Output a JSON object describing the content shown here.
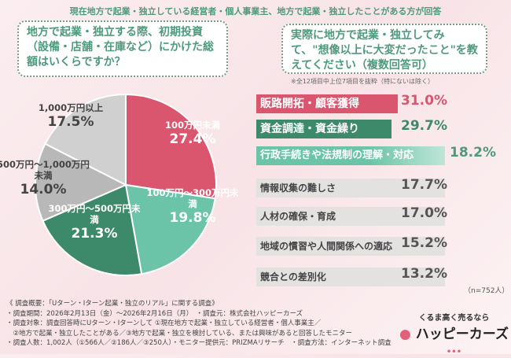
{
  "header": "現在地方で起業・独立している経営者・個人事業主、地方で起業・独立したことがある方が回答",
  "q1": "地方で起業・独立する際、初期投資（設備・店舗・在庫など）にかけた総額はいくらですか？",
  "q2": "実際に地方で起業・独立してみて、\"想像以上に大変だったこと\"を教えてください（複数回答可）",
  "note": "※全12項目中上位7項目を抜粋（特にないは除く）",
  "sample": "（n=752人）",
  "colors": {
    "pink": "#d9566e",
    "teal": "#6cc4a8",
    "green": "#3d8a6a",
    "gray1": "#c9c9c9",
    "gray2": "#b3b3b3"
  },
  "chart_data": [
    {
      "type": "pie",
      "slices": [
        {
          "label": "100万円未満",
          "value": 27.4,
          "display": "27.4%",
          "color": "#d9566e"
        },
        {
          "label": "100万円～300万円未満",
          "value": 19.8,
          "display": "19.8%",
          "color": "#6cc4a8"
        },
        {
          "label": "300万円～500万円未満",
          "value": 21.3,
          "display": "21.3%",
          "color": "#3d8a6a"
        },
        {
          "label": "500万円～1,000万円未満",
          "value": 14.0,
          "display": "14.0%",
          "color": "#b8b8b8"
        },
        {
          "label": "1,000万円以上",
          "value": 17.5,
          "display": "17.5%",
          "color": "#d0d0d0"
        }
      ]
    },
    {
      "type": "bar",
      "orientation": "horizontal",
      "categories": [
        "販路開拓・顧客獲得",
        "資金調達・資金繰り",
        "行政手続きや法規制の理解・対応",
        "情報収集の難しさ",
        "人材の確保・育成",
        "地域の慣習や人間関係への適応",
        "競合との差別化"
      ],
      "values": [
        31.0,
        29.7,
        18.2,
        17.7,
        17.0,
        15.2,
        13.2
      ],
      "display": [
        "31.0%",
        "29.7%",
        "18.2%",
        "17.7%",
        "17.0%",
        "15.2%",
        "13.2%"
      ]
    }
  ],
  "footer": [
    "《 調査概要：「Uターン・Iターン起業・独立のリアル」に関する調査》",
    "・調査期間：2026年2月13日（金）～2026年2月16日（月）　・調査元：株式会社ハッピーカーズ",
    "・調査対象：調査回答時にUターン・Iターンして ①現在地方で起業・独立している経営者・個人事業主／",
    "　②地方で起業・独立したことがある／③地方で起業・独立を検討している、または興味があると回答したモニター",
    "・調査人数：1,002人（①566人／②186人／③250人）・モニター提供元：PRIZMAリサーチ　・調査方法：インターネット調査"
  ],
  "logo": {
    "tagline": "くるま高く売るなら",
    "name": "ハッピーカーズ"
  }
}
